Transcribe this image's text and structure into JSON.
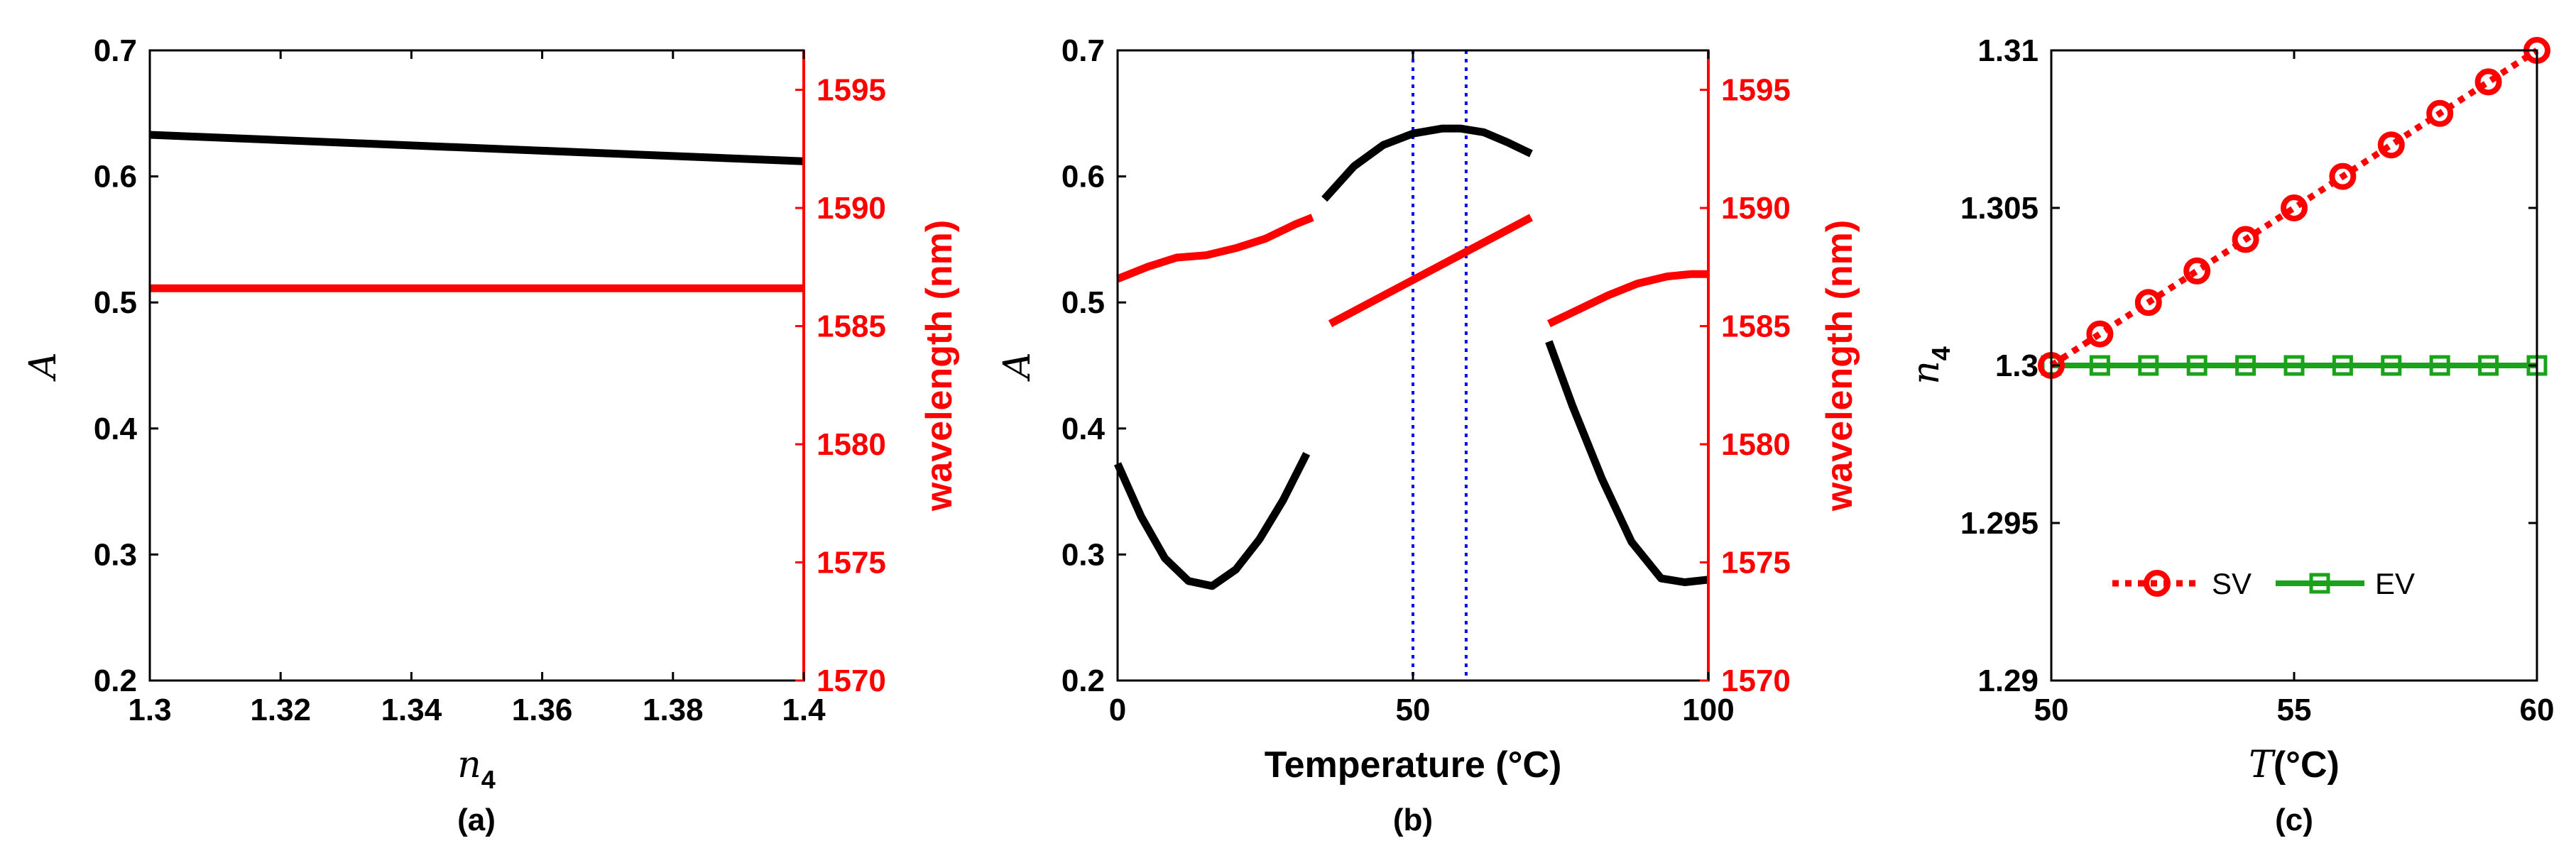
{
  "colors": {
    "black": "#000000",
    "red": "#ff0000",
    "blue": "#0000ff",
    "green": "#1aa31a"
  },
  "chart_data": [
    {
      "id": "a",
      "type": "line",
      "caption": "(a)",
      "xlabel_main": "n",
      "xlabel_sub": "4",
      "ylabel_left": "A",
      "ylabel_right": "wavelength (nm)",
      "xlim": [
        1.3,
        1.4
      ],
      "ylim_left": [
        0.2,
        0.7
      ],
      "ylim_right": [
        1570,
        1596.67
      ],
      "xticks": [
        1.3,
        1.32,
        1.34,
        1.36,
        1.38,
        1.4
      ],
      "xtick_labels": [
        "1.3",
        "1.32",
        "1.34",
        "1.36",
        "1.38",
        "1.4"
      ],
      "yticks_left": [
        0.2,
        0.3,
        0.4,
        0.5,
        0.6,
        0.7
      ],
      "ytick_labels_left": [
        "0.2",
        "0.3",
        "0.4",
        "0.5",
        "0.6",
        "0.7"
      ],
      "yticks_right": [
        1570,
        1575,
        1580,
        1585,
        1590,
        1595
      ],
      "ytick_labels_right": [
        "1570",
        "1575",
        "1580",
        "1585",
        "1590",
        "1595"
      ],
      "series": [
        {
          "name": "A",
          "axis": "left",
          "color": "#000000",
          "segments": [
            {
              "x": [
                1.3,
                1.4
              ],
              "y": [
                0.633,
                0.612
              ]
            }
          ]
        },
        {
          "name": "wavelength",
          "axis": "right",
          "color": "#ff0000",
          "segments": [
            {
              "x": [
                1.3,
                1.4
              ],
              "y": [
                1586.6,
                1586.6
              ]
            }
          ]
        }
      ]
    },
    {
      "id": "b",
      "type": "line",
      "caption": "(b)",
      "xlabel": "Temperature (°C)",
      "ylabel_left": "A",
      "ylabel_right": "wavelength (nm)",
      "xlim": [
        0,
        100
      ],
      "ylim_left": [
        0.2,
        0.7
      ],
      "ylim_right": [
        1570,
        1596.67
      ],
      "xticks": [
        0,
        50,
        100
      ],
      "xtick_labels": [
        "0",
        "50",
        "100"
      ],
      "yticks_left": [
        0.2,
        0.3,
        0.4,
        0.5,
        0.6,
        0.7
      ],
      "ytick_labels_left": [
        "0.2",
        "0.3",
        "0.4",
        "0.5",
        "0.6",
        "0.7"
      ],
      "yticks_right": [
        1570,
        1575,
        1580,
        1585,
        1590,
        1595
      ],
      "ytick_labels_right": [
        "1570",
        "1575",
        "1580",
        "1585",
        "1590",
        "1595"
      ],
      "vlines": [
        50,
        59
      ],
      "series": [
        {
          "name": "A",
          "axis": "left",
          "color": "#000000",
          "segments": [
            {
              "x": [
                0,
                4,
                8,
                12,
                16,
                20,
                24,
                28,
                32
              ],
              "y": [
                0.372,
                0.33,
                0.297,
                0.279,
                0.275,
                0.288,
                0.312,
                0.343,
                0.38
              ]
            },
            {
              "x": [
                35,
                40,
                45,
                50,
                55,
                58,
                62,
                66,
                70
              ],
              "y": [
                0.582,
                0.608,
                0.625,
                0.634,
                0.638,
                0.638,
                0.635,
                0.627,
                0.618
              ]
            },
            {
              "x": [
                73,
                77,
                82,
                87,
                92,
                96,
                100
              ],
              "y": [
                0.469,
                0.418,
                0.36,
                0.31,
                0.281,
                0.278,
                0.28
              ]
            }
          ]
        },
        {
          "name": "wavelength",
          "axis": "right",
          "color": "#ff0000",
          "segments": [
            {
              "x": [
                0,
                5,
                10,
                15,
                20,
                25,
                30,
                33
              ],
              "y": [
                1587.0,
                1587.5,
                1587.9,
                1588.0,
                1588.3,
                1588.7,
                1589.3,
                1589.6
              ]
            },
            {
              "x": [
                36,
                70
              ],
              "y": [
                1585.1,
                1589.6
              ]
            },
            {
              "x": [
                73,
                78,
                83,
                88,
                93,
                97,
                100
              ],
              "y": [
                1585.1,
                1585.7,
                1586.3,
                1586.8,
                1587.1,
                1587.2,
                1587.2
              ]
            }
          ]
        }
      ]
    },
    {
      "id": "c",
      "type": "line",
      "caption": "(c)",
      "xlabel_main": "T",
      "xlabel_rest": "(°C)",
      "ylabel_main": "n",
      "ylabel_sub": "4",
      "xlim": [
        50,
        60
      ],
      "ylim": [
        1.29,
        1.31
      ],
      "xticks": [
        50,
        55,
        60
      ],
      "xtick_labels": [
        "50",
        "55",
        "60"
      ],
      "yticks": [
        1.29,
        1.295,
        1.3,
        1.305,
        1.31
      ],
      "ytick_labels": [
        "1.29",
        "1.295",
        "1.3",
        "1.305",
        "1.31"
      ],
      "legend_position": "lower-center",
      "series": [
        {
          "name": "SV",
          "color": "#ff0000",
          "marker": "circle",
          "linestyle": "dotted",
          "x": [
            50,
            51,
            52,
            53,
            54,
            55,
            56,
            57,
            58,
            59,
            60
          ],
          "y": [
            1.3,
            1.301,
            1.302,
            1.303,
            1.304,
            1.305,
            1.306,
            1.307,
            1.308,
            1.309,
            1.31
          ]
        },
        {
          "name": "EV",
          "color": "#1aa31a",
          "marker": "square",
          "linestyle": "solid",
          "x": [
            50,
            51,
            52,
            53,
            54,
            55,
            56,
            57,
            58,
            59,
            60
          ],
          "y": [
            1.3,
            1.3,
            1.3,
            1.3,
            1.3,
            1.3,
            1.3,
            1.3,
            1.3,
            1.3,
            1.3
          ]
        }
      ]
    }
  ]
}
